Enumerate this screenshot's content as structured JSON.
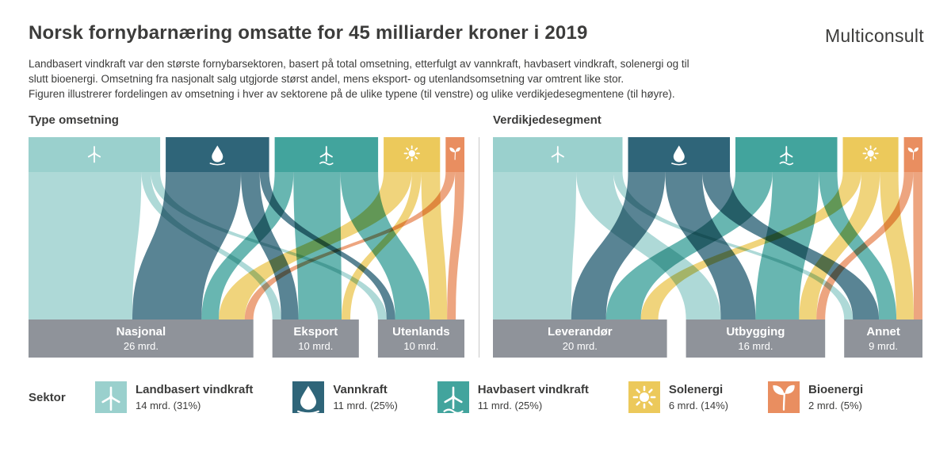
{
  "header": {
    "title": "Norsk fornybarnæring omsatte for 45 milliarder kroner i 2019",
    "logo": "Multiconsult",
    "description_lines": [
      "Landbasert vindkraft var den største fornybarsektoren, basert på total omsetning, etterfulgt av vannkraft, havbasert vindkraft, solenergi og til",
      "slutt bioenergi. Omsetning fra nasjonalt salg utgjorde størst andel, mens eksport- og utenlandsomsetning var omtrent like stor.",
      "Figuren illustrerer fordelingen av omsetning i hver av sektorene på de ulike typene (til venstre) og ulike verdikjedesegmentene (til høyre)."
    ]
  },
  "colors": {
    "node_gray": "#8f939a",
    "divider": "#c9c9c9",
    "text": "#3c3c3b",
    "landbasert": "#9ad0cd",
    "vannkraft": "#2f6579",
    "havbasert": "#42a49d",
    "solenergi": "#ecc95b",
    "bioenergi": "#e98e60"
  },
  "sectors": [
    {
      "name": "Landbasert vindkraft",
      "value": 14,
      "value_label": "14 mrd. (31%)",
      "color": "#9ad0cd",
      "icon": "wind-turbine"
    },
    {
      "name": "Vannkraft",
      "value": 11,
      "value_label": "11 mrd. (25%)",
      "color": "#2f6579",
      "icon": "water-drop"
    },
    {
      "name": "Havbasert vindkraft",
      "value": 11,
      "value_label": "11 mrd. (25%)",
      "color": "#42a49d",
      "icon": "offshore-wind-turbine"
    },
    {
      "name": "Solenergi",
      "value": 6,
      "value_label": "6 mrd. (14%)",
      "color": "#ecc95b",
      "icon": "sun"
    },
    {
      "name": "Bioenergi",
      "value": 2,
      "value_label": "2 mrd. (5%)",
      "color": "#e98e60",
      "icon": "leaf"
    }
  ],
  "chart_data": [
    {
      "type": "sankey",
      "title": "Type omsetning",
      "sources": [
        "Landbasert vindkraft",
        "Vannkraft",
        "Havbasert vindkraft",
        "Solenergi",
        "Bioenergi"
      ],
      "source_values": [
        14,
        11,
        11,
        6,
        2
      ],
      "targets": [
        {
          "name": "Nasjonal",
          "value": 26,
          "value_label": "26 mrd."
        },
        {
          "name": "Eksport",
          "value": 10,
          "value_label": "10 mrd."
        },
        {
          "name": "Utenlands",
          "value": 10,
          "value_label": "10 mrd."
        }
      ],
      "links": [
        {
          "source": 0,
          "target": 0,
          "value": 12
        },
        {
          "source": 0,
          "target": 1,
          "value": 1
        },
        {
          "source": 0,
          "target": 2,
          "value": 1
        },
        {
          "source": 1,
          "target": 0,
          "value": 8
        },
        {
          "source": 1,
          "target": 1,
          "value": 2
        },
        {
          "source": 1,
          "target": 2,
          "value": 1
        },
        {
          "source": 2,
          "target": 0,
          "value": 2
        },
        {
          "source": 2,
          "target": 1,
          "value": 5
        },
        {
          "source": 2,
          "target": 2,
          "value": 4
        },
        {
          "source": 3,
          "target": 0,
          "value": 3
        },
        {
          "source": 3,
          "target": 1,
          "value": 1
        },
        {
          "source": 3,
          "target": 2,
          "value": 2
        },
        {
          "source": 4,
          "target": 0,
          "value": 1
        },
        {
          "source": 4,
          "target": 2,
          "value": 1
        }
      ]
    },
    {
      "type": "sankey",
      "title": "Verdikjedesegment",
      "sources": [
        "Landbasert vindkraft",
        "Vannkraft",
        "Havbasert vindkraft",
        "Solenergi",
        "Bioenergi"
      ],
      "source_values": [
        14,
        11,
        11,
        6,
        2
      ],
      "targets": [
        {
          "name": "Leverandør",
          "value": 20,
          "value_label": "20 mrd."
        },
        {
          "name": "Utbygging",
          "value": 16,
          "value_label": "16 mrd."
        },
        {
          "name": "Annet",
          "value": 9,
          "value_label": "9 mrd."
        }
      ],
      "links": [
        {
          "source": 0,
          "target": 0,
          "value": 9
        },
        {
          "source": 0,
          "target": 1,
          "value": 4
        },
        {
          "source": 0,
          "target": 2,
          "value": 1
        },
        {
          "source": 1,
          "target": 0,
          "value": 4
        },
        {
          "source": 1,
          "target": 1,
          "value": 4
        },
        {
          "source": 1,
          "target": 2,
          "value": 3
        },
        {
          "source": 2,
          "target": 0,
          "value": 4
        },
        {
          "source": 2,
          "target": 1,
          "value": 5
        },
        {
          "source": 2,
          "target": 2,
          "value": 2
        },
        {
          "source": 3,
          "target": 0,
          "value": 2
        },
        {
          "source": 3,
          "target": 1,
          "value": 2
        },
        {
          "source": 3,
          "target": 2,
          "value": 2
        },
        {
          "source": 4,
          "target": 1,
          "value": 1
        },
        {
          "source": 4,
          "target": 2,
          "value": 1
        }
      ]
    }
  ],
  "legend": {
    "label": "Sektor"
  }
}
